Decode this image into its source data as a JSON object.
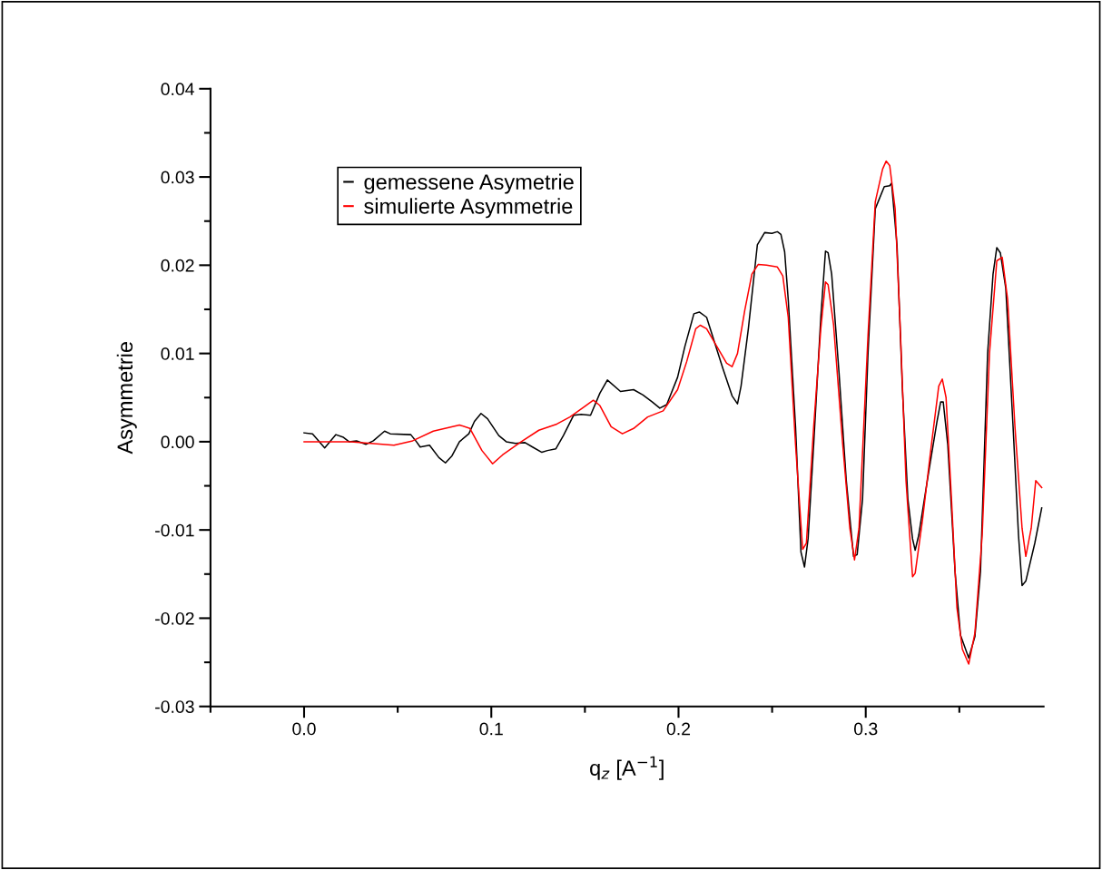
{
  "chart_data": {
    "type": "line",
    "xlabel": "q$_{z}$ [A$^{−1}$]",
    "ylabel": "Asymmetrie",
    "xlim": [
      -0.05,
      0.395
    ],
    "xticks": [
      {
        "value": -0.05,
        "label": null
      },
      {
        "value": 0,
        "label": "0.0"
      },
      {
        "value": 0.05,
        "label": null
      },
      {
        "value": 0.1,
        "label": "0.1"
      },
      {
        "value": 0.15,
        "label": null
      },
      {
        "value": 0.2,
        "label": "0.2"
      },
      {
        "value": 0.25,
        "label": null
      },
      {
        "value": 0.3,
        "label": "0.3"
      },
      {
        "value": 0.35,
        "label": null
      }
    ],
    "ylim": [
      -0.03,
      0.04
    ],
    "yticks": [
      {
        "value": -0.03,
        "label": "-0.03"
      },
      {
        "value": -0.025,
        "label": null
      },
      {
        "value": -0.02,
        "label": "-0.02"
      },
      {
        "value": -0.015,
        "label": null
      },
      {
        "value": -0.01,
        "label": "-0.01"
      },
      {
        "value": -0.005,
        "label": null
      },
      {
        "value": 0,
        "label": "0.00"
      },
      {
        "value": 0.005,
        "label": null
      },
      {
        "value": 0.01,
        "label": "0.01"
      },
      {
        "value": 0.015,
        "label": null
      },
      {
        "value": 0.02,
        "label": "0.02"
      },
      {
        "value": 0.025,
        "label": null
      },
      {
        "value": 0.03,
        "label": "0.03"
      },
      {
        "value": 0.035,
        "label": null
      },
      {
        "value": 0.04,
        "label": "0.04"
      }
    ],
    "grid": false,
    "legend": "top left",
    "marker": "none",
    "line_style": "solid",
    "series": [
      {
        "name": "gemessene Asymetrie",
        "color": "#000000",
        "x": [
          0.0,
          0.0045,
          0.011,
          0.017,
          0.021,
          0.024,
          0.028,
          0.033,
          0.037,
          0.043,
          0.046,
          0.057,
          0.06,
          0.062,
          0.067,
          0.072,
          0.0755,
          0.079,
          0.083,
          0.088,
          0.091,
          0.0945,
          0.098,
          0.104,
          0.108,
          0.113,
          0.118,
          0.122,
          0.127,
          0.13,
          0.1345,
          0.1385,
          0.144,
          0.148,
          0.153,
          0.158,
          0.162,
          0.169,
          0.176,
          0.181,
          0.186,
          0.19,
          0.1937,
          0.1995,
          0.2034,
          0.2082,
          0.2111,
          0.215,
          0.2237,
          0.2286,
          0.2315,
          0.2334,
          0.2373,
          0.2421,
          0.246,
          0.2499,
          0.2528,
          0.2547,
          0.2567,
          0.2586,
          0.2625,
          0.2654,
          0.2673,
          0.2692,
          0.2722,
          0.276,
          0.2785,
          0.2799,
          0.2818,
          0.2857,
          0.2896,
          0.2935,
          0.2954,
          0.2983,
          0.3012,
          0.3051,
          0.3099,
          0.3128,
          0.3138,
          0.3167,
          0.3196,
          0.3225,
          0.325,
          0.3264,
          0.3283,
          0.3332,
          0.338,
          0.34,
          0.3414,
          0.3438,
          0.3477,
          0.3506,
          0.355,
          0.3583,
          0.3613,
          0.3651,
          0.368,
          0.37,
          0.3719,
          0.3748,
          0.3787,
          0.3816,
          0.3835,
          0.3855,
          0.3903,
          0.394
        ],
        "values": [
          0.001,
          0.0009,
          -0.0007,
          0.0008,
          0.0005,
          0.0,
          0.0001,
          -0.0003,
          0.0001,
          0.0012,
          0.0009,
          0.0008,
          0.0,
          -0.0006,
          -0.0004,
          -0.0018,
          -0.0024,
          -0.0016,
          0.0,
          0.0009,
          0.0023,
          0.0032,
          0.0026,
          0.0007,
          0.0,
          -0.0002,
          -0.0001,
          -0.0006,
          -0.0012,
          -0.001,
          -0.0008,
          0.0007,
          0.003,
          0.0031,
          0.003,
          0.0055,
          0.007,
          0.0057,
          0.0059,
          0.0053,
          0.0045,
          0.0038,
          0.0042,
          0.0073,
          0.0108,
          0.0145,
          0.0147,
          0.0141,
          0.0083,
          0.0052,
          0.0043,
          0.0063,
          0.0128,
          0.0223,
          0.0237,
          0.0236,
          0.0238,
          0.0235,
          0.0215,
          0.0161,
          0.0017,
          -0.0125,
          -0.0142,
          -0.011,
          -0.0003,
          0.0141,
          0.0216,
          0.0214,
          0.019,
          0.0079,
          -0.0044,
          -0.013,
          -0.0128,
          -0.0065,
          0.01,
          0.0264,
          0.0289,
          0.029,
          0.0293,
          0.0223,
          0.0059,
          -0.0065,
          -0.011,
          -0.0123,
          -0.0106,
          -0.004,
          0.0022,
          0.0045,
          0.0045,
          -0.0003,
          -0.0147,
          -0.0219,
          -0.0245,
          -0.0221,
          -0.0147,
          0.01,
          0.019,
          0.022,
          0.0214,
          0.0174,
          0.0017,
          -0.0106,
          -0.0163,
          -0.0158,
          -0.0115,
          -0.0075
        ]
      },
      {
        "name": "simulierte Asymmetrie",
        "color": "#ff0000",
        "x": [
          0.0,
          0.025,
          0.048,
          0.058,
          0.069,
          0.083,
          0.0886,
          0.095,
          0.1007,
          0.106,
          0.116,
          0.1254,
          0.135,
          0.142,
          0.15,
          0.1545,
          0.158,
          0.164,
          0.17,
          0.176,
          0.1835,
          0.1918,
          0.1995,
          0.2044,
          0.2092,
          0.2116,
          0.215,
          0.2199,
          0.2257,
          0.2286,
          0.2315,
          0.2354,
          0.2392,
          0.2426,
          0.247,
          0.2528,
          0.2557,
          0.2586,
          0.2625,
          0.2663,
          0.2683,
          0.2722,
          0.276,
          0.2785,
          0.2799,
          0.2828,
          0.2877,
          0.2915,
          0.294,
          0.2964,
          0.3012,
          0.3051,
          0.309,
          0.3109,
          0.3128,
          0.3157,
          0.3186,
          0.3215,
          0.325,
          0.3264,
          0.3303,
          0.3351,
          0.339,
          0.3409,
          0.3429,
          0.3458,
          0.3487,
          0.3516,
          0.355,
          0.3583,
          0.3622,
          0.3661,
          0.37,
          0.3729,
          0.3758,
          0.3797,
          0.3835,
          0.3855,
          0.3884,
          0.3908,
          0.394
        ],
        "values": [
          0.0,
          0.0,
          -0.0004,
          0.0001,
          0.0012,
          0.0019,
          0.0015,
          -0.001,
          -0.0025,
          -0.0015,
          0.0,
          0.0013,
          0.002,
          0.0028,
          0.004,
          0.0047,
          0.0041,
          0.0017,
          0.0009,
          0.0015,
          0.0028,
          0.0035,
          0.0059,
          0.0091,
          0.0128,
          0.0132,
          0.0128,
          0.011,
          0.0089,
          0.0085,
          0.01,
          0.0149,
          0.019,
          0.0201,
          0.02,
          0.0198,
          0.0188,
          0.0141,
          -0.0003,
          -0.0122,
          -0.0115,
          0.0017,
          0.0128,
          0.0181,
          0.0178,
          0.0133,
          -0.0003,
          -0.0098,
          -0.0134,
          -0.0098,
          0.012,
          0.0272,
          0.0309,
          0.0318,
          0.0313,
          0.0264,
          0.012,
          -0.0044,
          -0.0153,
          -0.0149,
          -0.0089,
          -0.0003,
          0.0063,
          0.0071,
          0.005,
          -0.0065,
          -0.0188,
          -0.0235,
          -0.0252,
          -0.0217,
          -0.0106,
          0.01,
          0.0205,
          0.0209,
          0.0161,
          0.0017,
          -0.0098,
          -0.013,
          -0.0098,
          -0.0044,
          -0.0052
        ]
      }
    ]
  }
}
